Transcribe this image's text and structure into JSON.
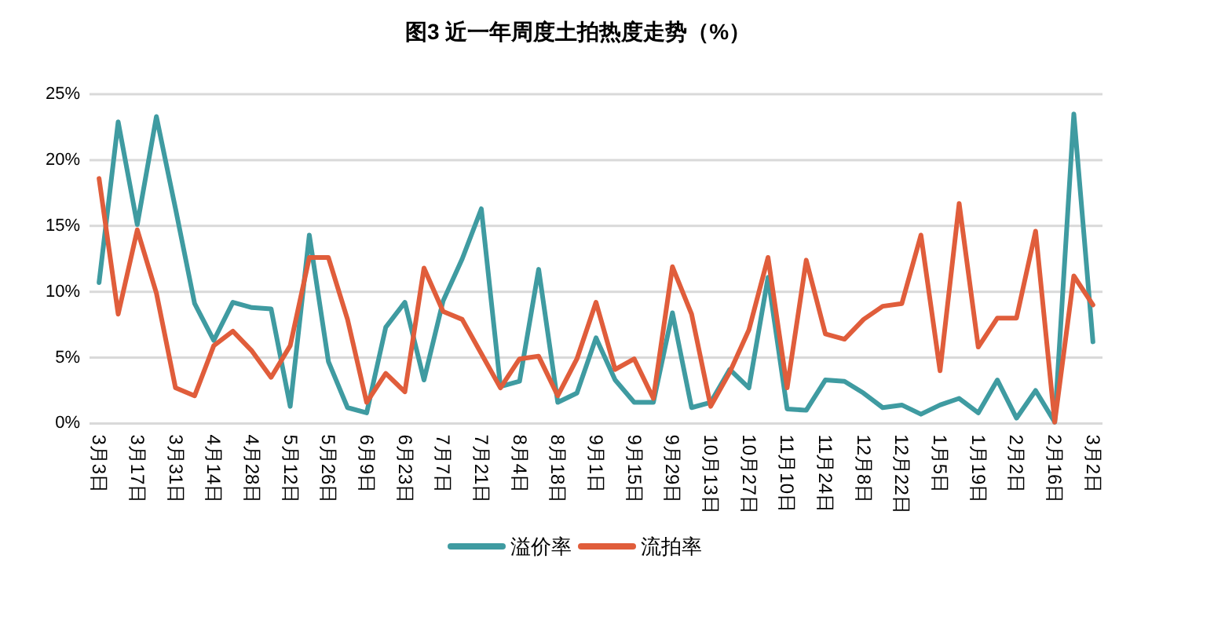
{
  "chart_data": {
    "type": "line",
    "title": "图3 近一年周度土拍热度走势（%）",
    "categories": [
      "3月3日",
      null,
      "3月17日",
      null,
      "3月31日",
      null,
      "4月14日",
      null,
      "4月28日",
      null,
      "5月12日",
      null,
      "5月26日",
      null,
      "6月9日",
      null,
      "6月23日",
      null,
      "7月7日",
      null,
      "7月21日",
      null,
      "8月4日",
      null,
      "8月18日",
      null,
      "9月1日",
      null,
      "9月15日",
      null,
      "9月29日",
      null,
      "10月13日",
      null,
      "10月27日",
      null,
      "11月10日",
      null,
      "11月24日",
      null,
      "12月8日",
      null,
      "12月22日",
      null,
      "1月5日",
      null,
      "1月19日",
      null,
      "2月2日",
      null,
      "2月16日",
      null,
      "3月2日"
    ],
    "series": [
      {
        "name": "溢价率",
        "color": "#3f9ba1",
        "values": [
          10.7,
          22.9,
          15.1,
          23.3,
          16.3,
          9.1,
          6.3,
          9.2,
          8.8,
          8.7,
          1.3,
          14.3,
          4.7,
          1.2,
          0.8,
          7.3,
          9.2,
          3.3,
          9.3,
          12.5,
          16.3,
          2.8,
          3.2,
          11.7,
          1.6,
          2.3,
          6.5,
          3.3,
          1.6,
          1.6,
          8.4,
          1.2,
          1.6,
          4.1,
          2.7,
          11.1,
          1.1,
          1.0,
          3.3,
          3.2,
          2.3,
          1.2,
          1.4,
          0.7,
          1.4,
          1.9,
          0.8,
          3.3,
          0.4,
          2.5,
          0.1,
          23.5,
          6.2
        ]
      },
      {
        "name": "流拍率",
        "color": "#e05d3b",
        "values": [
          18.6,
          8.3,
          14.7,
          9.9,
          2.7,
          2.1,
          5.9,
          7.0,
          5.5,
          3.5,
          5.9,
          12.6,
          12.6,
          7.9,
          1.6,
          3.8,
          2.4,
          11.8,
          8.5,
          7.9,
          5.3,
          2.7,
          4.9,
          5.1,
          2.1,
          4.9,
          9.2,
          4.1,
          4.9,
          1.9,
          11.9,
          8.3,
          1.3,
          3.9,
          7.1,
          12.6,
          2.7,
          12.4,
          6.8,
          6.4,
          7.9,
          8.9,
          9.1,
          14.3,
          4.0,
          16.7,
          5.8,
          8.0,
          8.0,
          14.6,
          0.1,
          11.2,
          9.0
        ]
      }
    ],
    "ylim": [
      0,
      25
    ],
    "yticks": [
      {
        "value": 0,
        "label": "0%"
      },
      {
        "value": 5,
        "label": "5%"
      },
      {
        "value": 10,
        "label": "10%"
      },
      {
        "value": 15,
        "label": "15%"
      },
      {
        "value": 20,
        "label": "20%"
      },
      {
        "value": 25,
        "label": "25%"
      }
    ],
    "grid": "y",
    "legend": "bottom"
  }
}
